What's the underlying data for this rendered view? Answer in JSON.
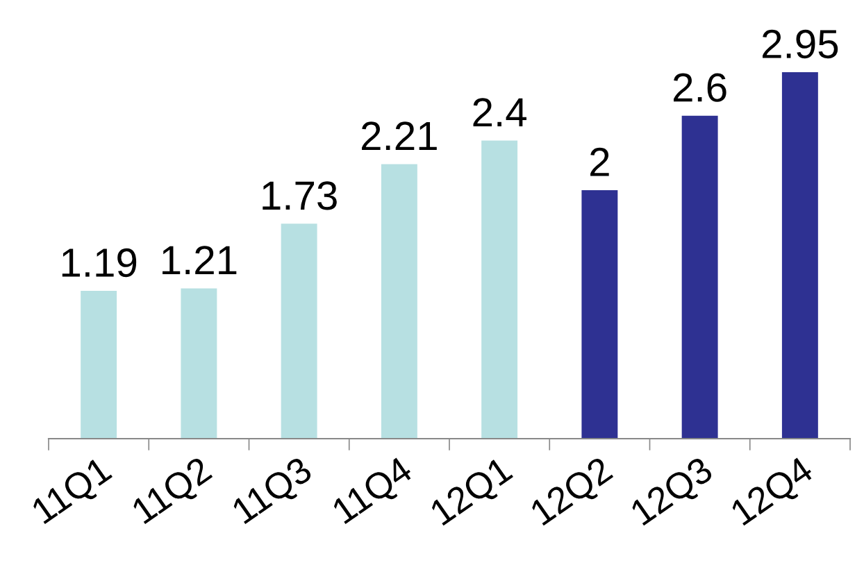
{
  "chart_data": {
    "type": "bar",
    "categories": [
      "11Q1",
      "11Q2",
      "11Q3",
      "11Q4",
      "12Q1",
      "12Q2",
      "12Q3",
      "12Q4"
    ],
    "values": [
      1.19,
      1.21,
      1.73,
      2.21,
      2.4,
      2,
      2.6,
      2.95
    ],
    "colors": [
      "#b7e0e2",
      "#b7e0e2",
      "#b7e0e2",
      "#b7e0e2",
      "#b7e0e2",
      "#2e3192",
      "#2e3192",
      "#2e3192"
    ],
    "data_labels": true,
    "grid": false,
    "legend": false
  }
}
